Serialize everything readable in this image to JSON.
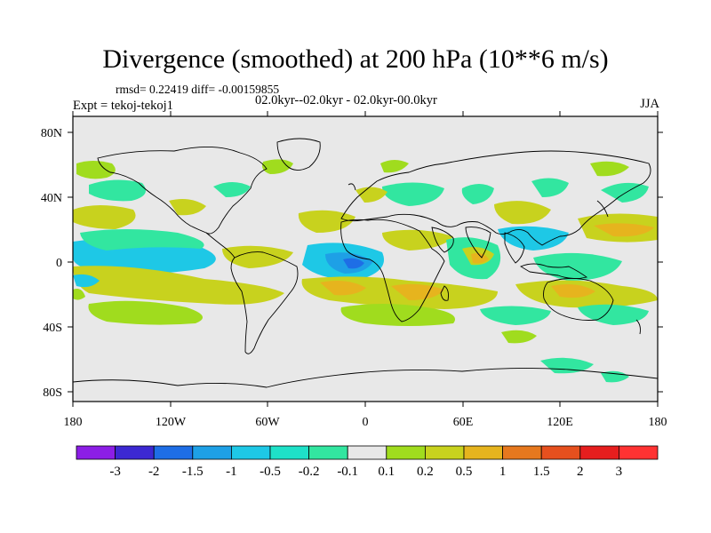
{
  "title": "Divergence (smoothed) at 200 hPa (10**6 m/s)",
  "stats_text": "rmsd= 0.22419 diff= -0.00159855",
  "experiment_text": "Expt = tekoj-tekoj1",
  "period_text": "02.0kyr--02.0kyr - 02.0kyr-00.0kyr",
  "season_text": "JJA",
  "map": {
    "lat_labels": [
      "80N",
      "40N",
      "0",
      "40S",
      "80S"
    ],
    "lon_labels": [
      "180",
      "120W",
      "60W",
      "0",
      "60E",
      "120E",
      "180"
    ],
    "background_color": "#e8e8e8"
  },
  "colorbar": {
    "labels": [
      "-3",
      "-2",
      "-1.5",
      "-1",
      "-0.5",
      "-0.2",
      "-0.1",
      "0.1",
      "0.2",
      "0.5",
      "1",
      "1.5",
      "2",
      "3"
    ],
    "colors": [
      "#8c1ee6",
      "#3c28d2",
      "#1e6ee6",
      "#1ea0e6",
      "#1ec8e6",
      "#1ee1c8",
      "#32e6a0",
      "#e8e8e8",
      "#a0dc1e",
      "#c8d21e",
      "#e6b41e",
      "#e6781e",
      "#e6501e",
      "#e61e1e",
      "#ff3232"
    ]
  }
}
